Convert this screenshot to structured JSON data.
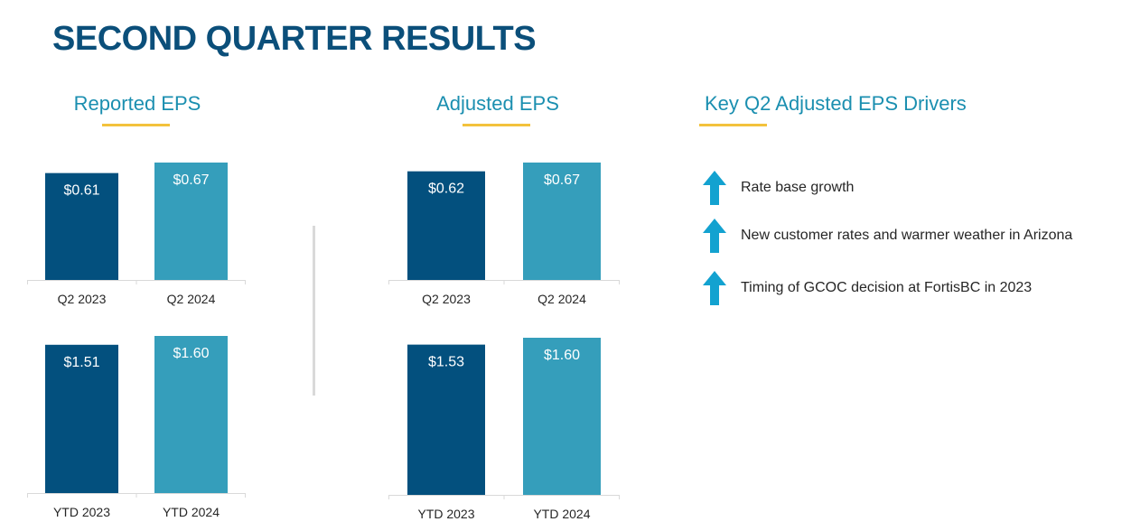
{
  "page": {
    "title": "SECOND QUARTER RESULTS"
  },
  "reported": {
    "heading": "Reported EPS"
  },
  "adjusted": {
    "heading": "Adjusted EPS"
  },
  "drivers": {
    "heading": "Key Q2 Adjusted EPS Drivers",
    "arrow_icon": "up-arrow-icon",
    "arrow_color": "#13a2d0",
    "items": [
      {
        "direction": "up",
        "text": "Rate base growth"
      },
      {
        "direction": "up",
        "text": "New customer rates and warmer weather in Arizona"
      },
      {
        "direction": "up",
        "text": "Timing of GCOC decision at FortisBC in 2023"
      }
    ]
  },
  "colors": {
    "title": "#0b4f7a",
    "heading": "#1b8fb0",
    "underline": "#f3c23c",
    "bar_prior": "#03507e",
    "bar_current": "#359ebb"
  },
  "chart_data": [
    {
      "id": "reported-q2",
      "type": "bar",
      "title": "Reported EPS",
      "categories": [
        "Q2 2023",
        "Q2 2024"
      ],
      "values": [
        0.61,
        0.67
      ],
      "data_labels": [
        "$0.61",
        "$0.67"
      ],
      "ylim": [
        0,
        0.67
      ],
      "bar_colors": [
        "#03507e",
        "#359ebb"
      ]
    },
    {
      "id": "reported-ytd",
      "type": "bar",
      "title": "Reported EPS",
      "categories": [
        "YTD 2023",
        "YTD 2024"
      ],
      "values": [
        1.51,
        1.6
      ],
      "data_labels": [
        "$1.51",
        "$1.60"
      ],
      "ylim": [
        0,
        1.6
      ],
      "bar_colors": [
        "#03507e",
        "#359ebb"
      ]
    },
    {
      "id": "adjusted-q2",
      "type": "bar",
      "title": "Adjusted EPS",
      "categories": [
        "Q2 2023",
        "Q2 2024"
      ],
      "values": [
        0.62,
        0.67
      ],
      "data_labels": [
        "$0.62",
        "$0.67"
      ],
      "ylim": [
        0,
        0.67
      ],
      "bar_colors": [
        "#03507e",
        "#359ebb"
      ]
    },
    {
      "id": "adjusted-ytd",
      "type": "bar",
      "title": "Adjusted EPS",
      "categories": [
        "YTD 2023",
        "YTD 2024"
      ],
      "values": [
        1.53,
        1.6
      ],
      "data_labels": [
        "$1.53",
        "$1.60"
      ],
      "ylim": [
        0,
        1.6
      ],
      "bar_colors": [
        "#03507e",
        "#359ebb"
      ]
    }
  ]
}
